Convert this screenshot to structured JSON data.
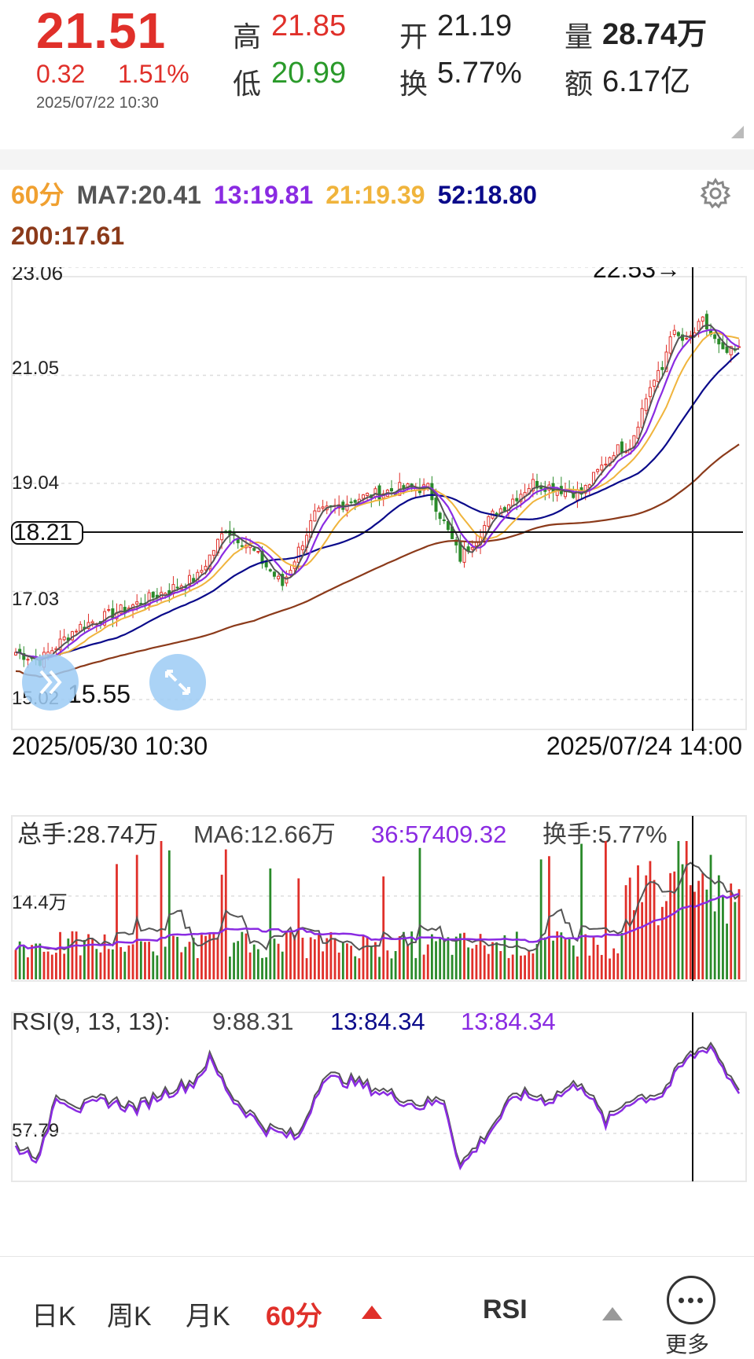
{
  "quote": {
    "price": "21.51",
    "change": "0.32",
    "change_pct": "1.51%",
    "time": "2025/07/22 10:30",
    "high_label": "高",
    "high": "21.85",
    "low_label": "低",
    "low": "20.99",
    "open_label": "开",
    "open": "21.19",
    "turnover_label": "换",
    "turnover": "5.77%",
    "volume_label": "量",
    "volume": "28.74万",
    "amount_label": "额",
    "amount": "6.17亿"
  },
  "ma_legend": {
    "period": "60分",
    "ma7": "MA7:20.41",
    "ma13": "13:19.81",
    "ma21": "21:19.39",
    "ma52": "52:18.80",
    "ma200": "200:17.61"
  },
  "colors": {
    "up": "#e0302a",
    "down": "#2a8a2a",
    "ma7": "#555555",
    "ma13": "#8a2be2",
    "ma21": "#f0b43c",
    "ma52": "#0a0a8a",
    "ma200": "#8b3a1a",
    "rsi13": "#0a0a8a"
  },
  "icons": {
    "settings": "gear-icon",
    "forward": "double-chevron-icon",
    "expand": "expand-arrows-icon",
    "more": "ellipsis-icon"
  },
  "chart_data": [
    {
      "type": "candlestick",
      "y_ticks": [
        "23.06",
        "21.05",
        "19.04",
        "17.03",
        "15.02"
      ],
      "ylim": [
        15.02,
        23.06
      ],
      "crosshair_price": "18.21",
      "max_annotation": "22.53→",
      "min_annotation": "15.55",
      "x_start": "2025/05/30 10:30",
      "x_end": "2025/07/24 14:00",
      "key_points": [
        {
          "i": 0,
          "close": 15.9
        },
        {
          "i": 6,
          "close": 15.75
        },
        {
          "i": 15,
          "close": 16.35
        },
        {
          "i": 30,
          "close": 16.8
        },
        {
          "i": 45,
          "close": 17.3
        },
        {
          "i": 52,
          "close": 18.2
        },
        {
          "i": 58,
          "close": 17.85
        },
        {
          "i": 66,
          "close": 17.15
        },
        {
          "i": 74,
          "close": 18.45
        },
        {
          "i": 84,
          "close": 18.75
        },
        {
          "i": 95,
          "close": 18.95
        },
        {
          "i": 102,
          "close": 18.95
        },
        {
          "i": 110,
          "close": 17.65
        },
        {
          "i": 118,
          "close": 18.45
        },
        {
          "i": 128,
          "close": 19.05
        },
        {
          "i": 140,
          "close": 18.85
        },
        {
          "i": 148,
          "close": 19.65
        },
        {
          "i": 152,
          "close": 19.75
        },
        {
          "i": 157,
          "close": 20.85
        },
        {
          "i": 160,
          "close": 21.15
        },
        {
          "i": 162,
          "close": 21.85
        },
        {
          "i": 166,
          "close": 21.65
        },
        {
          "i": 170,
          "close": 22.05
        },
        {
          "i": 175,
          "close": 21.45
        },
        {
          "i": 179,
          "close": 21.51
        }
      ],
      "ma_series": [
        {
          "name": "MA7",
          "last": 20.41
        },
        {
          "name": "13",
          "last": 19.81
        },
        {
          "name": "21",
          "last": 19.39
        },
        {
          "name": "52",
          "last": 18.8
        },
        {
          "name": "200",
          "last": 17.61
        }
      ]
    },
    {
      "type": "bar",
      "legend_total": "总手:28.74万",
      "legend_ma6": "MA6:12.66万",
      "legend_ma36": "36:57409.32",
      "legend_turnover": "换手:5.77%",
      "y_tick": "14.4万"
    },
    {
      "type": "line",
      "legend_title": "RSI(9, 13, 13):",
      "rsi9": "9:88.31",
      "rsi13a": "13:84.34",
      "rsi13b": "13:84.34",
      "y_tick": "57.79",
      "key_points": [
        {
          "i": 0,
          "v": 42
        },
        {
          "i": 6,
          "v": 38
        },
        {
          "i": 10,
          "v": 60
        },
        {
          "i": 16,
          "v": 55
        },
        {
          "i": 22,
          "v": 58
        },
        {
          "i": 30,
          "v": 55
        },
        {
          "i": 36,
          "v": 60
        },
        {
          "i": 44,
          "v": 64
        },
        {
          "i": 48,
          "v": 72
        },
        {
          "i": 54,
          "v": 58
        },
        {
          "i": 62,
          "v": 48
        },
        {
          "i": 70,
          "v": 45
        },
        {
          "i": 76,
          "v": 66
        },
        {
          "i": 84,
          "v": 64
        },
        {
          "i": 92,
          "v": 60
        },
        {
          "i": 100,
          "v": 56
        },
        {
          "i": 106,
          "v": 58
        },
        {
          "i": 110,
          "v": 35
        },
        {
          "i": 116,
          "v": 45
        },
        {
          "i": 124,
          "v": 60
        },
        {
          "i": 132,
          "v": 58
        },
        {
          "i": 140,
          "v": 64
        },
        {
          "i": 146,
          "v": 50
        },
        {
          "i": 152,
          "v": 58
        },
        {
          "i": 160,
          "v": 60
        },
        {
          "i": 166,
          "v": 72
        },
        {
          "i": 172,
          "v": 77
        },
        {
          "i": 176,
          "v": 67
        },
        {
          "i": 179,
          "v": 62
        }
      ]
    }
  ],
  "bottom_nav": {
    "day": "日K",
    "week": "周K",
    "month": "月K",
    "min60": "60分",
    "indicator": "RSI",
    "more": "更多"
  }
}
